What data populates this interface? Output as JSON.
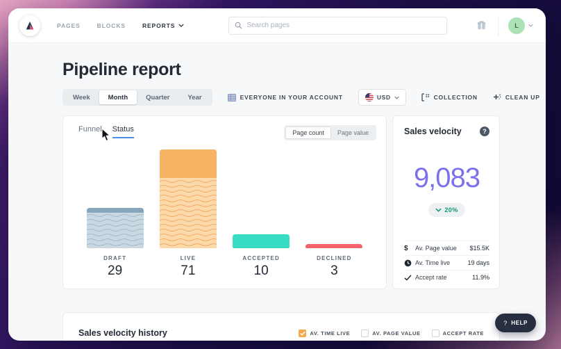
{
  "nav": {
    "items": {
      "pages": "PAGES",
      "blocks": "BLOCKS",
      "reports": "REPORTS"
    },
    "search_placeholder": "Search pages",
    "avatar_initial": "L"
  },
  "page": {
    "title": "Pipeline report"
  },
  "filters": {
    "period_options": [
      "Week",
      "Month",
      "Quarter",
      "Year"
    ],
    "period_selected": "Month",
    "scope_label": "EVERYONE IN YOUR ACCOUNT",
    "currency": "USD",
    "collection_label": "COLLECTION",
    "cleanup_label": "CLEAN UP"
  },
  "status_card": {
    "tabs": [
      "Funnel",
      "Status"
    ],
    "active_tab": "Status",
    "toggle_options": [
      "Page count",
      "Page value"
    ],
    "toggle_selected": "Page count"
  },
  "chart_data": {
    "type": "bar",
    "categories": [
      "DRAFT",
      "LIVE",
      "ACCEPTED",
      "DECLINED"
    ],
    "values": [
      29,
      71,
      10,
      3
    ],
    "solid_top_fraction": [
      0.12,
      0.29,
      1,
      1
    ],
    "bar_colors": [
      "#c9d8e2",
      "#fcd9a9",
      "#38dcc4",
      "#f4626b"
    ],
    "bar_cap_colors": [
      "#88a6bb",
      "#f8b264",
      "#38dcc4",
      "#f4626b"
    ],
    "title": "",
    "xlabel": "",
    "ylabel": "",
    "legend": "none",
    "grid": false
  },
  "sales_velocity": {
    "title": "Sales velocity",
    "value": "9,083",
    "change": "20%",
    "change_direction": "down",
    "change_color": "#0d9b73",
    "value_color": "#7b71e9",
    "stats": [
      {
        "icon": "dollar-icon",
        "label": "Av. Page value",
        "value": "$15.5K"
      },
      {
        "icon": "clock-icon",
        "label": "Av. Time live",
        "value": "19 days"
      },
      {
        "icon": "check-icon",
        "label": "Accept rate",
        "value": "11.9%"
      }
    ]
  },
  "history_card": {
    "title": "Sales velocity history",
    "checkboxes": [
      {
        "label": "AV. TIME LIVE",
        "checked": true
      },
      {
        "label": "AV. PAGE VALUE",
        "checked": false
      },
      {
        "label": "ACCEPT RATE",
        "checked": false
      }
    ],
    "checked_color": "#f6a94a"
  },
  "help_button": {
    "icon": "?",
    "label": "HELP"
  }
}
